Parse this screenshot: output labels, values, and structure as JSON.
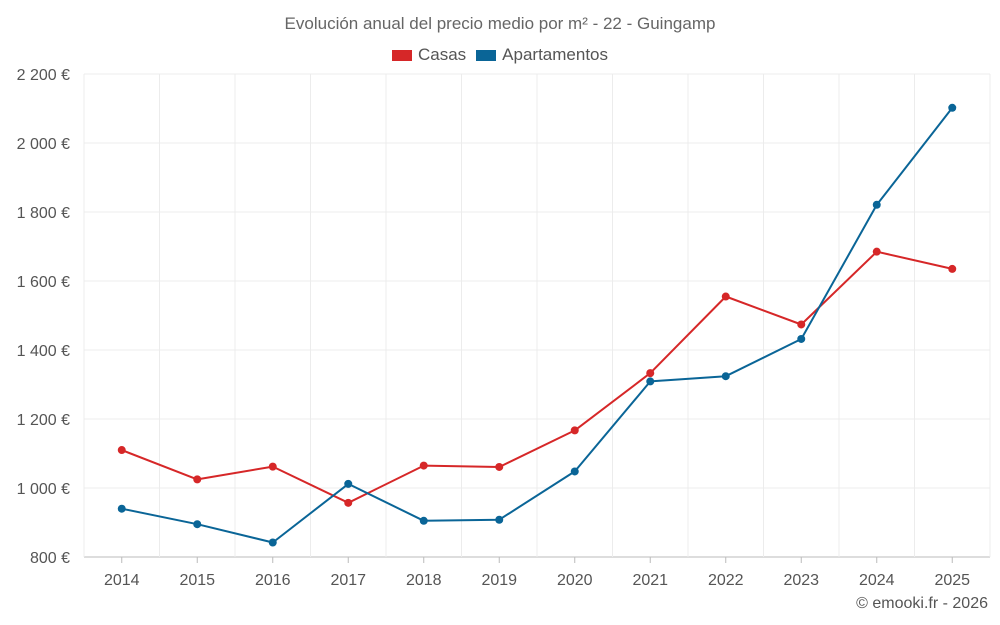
{
  "colors": {
    "casas": "#d62728",
    "apartamentos": "#0a6597",
    "grid": "#ececec",
    "axis": "#bbbbbb"
  },
  "chart_data": {
    "type": "line",
    "title": "Evolución anual del precio medio por m² - 22 - Guingamp",
    "xlabel": "",
    "ylabel": "",
    "categories": [
      "2014",
      "2015",
      "2016",
      "2017",
      "2018",
      "2019",
      "2020",
      "2021",
      "2022",
      "2023",
      "2024",
      "2025"
    ],
    "series": [
      {
        "name": "Casas",
        "color": "#d62728",
        "values": [
          1110,
          1025,
          1062,
          957,
          1065,
          1061,
          1167,
          1333,
          1555,
          1474,
          1685,
          1635
        ]
      },
      {
        "name": "Apartamentos",
        "color": "#0a6597",
        "values": [
          940,
          895,
          842,
          1012,
          905,
          908,
          1048,
          1309,
          1324,
          1432,
          1821,
          2102
        ]
      }
    ],
    "ylim": [
      800,
      2200
    ],
    "yticks": [
      800,
      1000,
      1200,
      1400,
      1600,
      1800,
      2000,
      2200
    ],
    "ytick_labels": [
      "800 €",
      "1 000 €",
      "1 200 €",
      "1 400 €",
      "1 600 €",
      "1 800 €",
      "2 000 €",
      "2 200 €"
    ],
    "legend_position": "top-center",
    "grid": true
  },
  "watermark": "© emooki.fr - 2026"
}
